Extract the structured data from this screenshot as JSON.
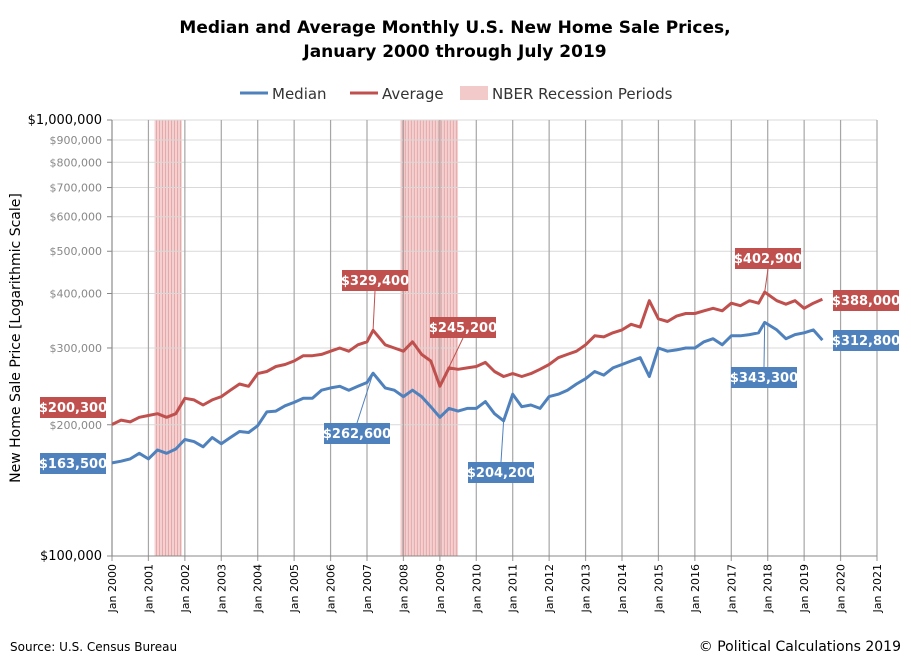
{
  "chart_data": {
    "type": "line",
    "title_line1": "Median and Average Monthly U.S. New Home Sale Prices,",
    "title_line2": "January 2000 through July 2019",
    "ylabel": "New Home Sale Price [Logarithmic Scale]",
    "xlabel": "",
    "y_scale": "log",
    "ylim": [
      100000,
      1000000
    ],
    "xlim": [
      "2000-01",
      "2021-01"
    ],
    "grid": true,
    "legend_placement": "top",
    "y_ticks": [
      {
        "value": 1000000,
        "label": "$1,000,000",
        "major": true
      },
      {
        "value": 900000,
        "label": "$900,000",
        "major": false
      },
      {
        "value": 800000,
        "label": "$800,000",
        "major": false
      },
      {
        "value": 700000,
        "label": "$700,000",
        "major": false
      },
      {
        "value": 600000,
        "label": "$600,000",
        "major": false
      },
      {
        "value": 500000,
        "label": "$500,000",
        "major": false
      },
      {
        "value": 400000,
        "label": "$400,000",
        "major": false
      },
      {
        "value": 300000,
        "label": "$300,000",
        "major": false
      },
      {
        "value": 200000,
        "label": "$200,000",
        "major": false
      },
      {
        "value": 100000,
        "label": "$100,000",
        "major": true
      }
    ],
    "x_ticks": [
      "Jan 2000",
      "Jan 2001",
      "Jan 2002",
      "Jan 2003",
      "Jan 2004",
      "Jan 2005",
      "Jan 2006",
      "Jan 2007",
      "Jan 2008",
      "Jan 2009",
      "Jan 2010",
      "Jan 2011",
      "Jan 2012",
      "Jan 2013",
      "Jan 2014",
      "Jan 2015",
      "Jan 2016",
      "Jan 2017",
      "Jan 2018",
      "Jan 2019",
      "Jan 2020",
      "Jan 2021"
    ],
    "recessions": {
      "name": "NBER Recession Periods",
      "color": "#e8a8a8",
      "periods": [
        [
          "2001-03",
          "2001-11"
        ],
        [
          "2007-12",
          "2009-06"
        ]
      ]
    },
    "series": [
      {
        "name": "Median",
        "color": "#4f81bd",
        "points": [
          [
            "2000-01",
            163500
          ],
          [
            "2000-04",
            165000
          ],
          [
            "2000-07",
            167000
          ],
          [
            "2000-10",
            172000
          ],
          [
            "2001-01",
            167000
          ],
          [
            "2001-04",
            175000
          ],
          [
            "2001-07",
            172000
          ],
          [
            "2001-10",
            176000
          ],
          [
            "2002-01",
            185000
          ],
          [
            "2002-04",
            183000
          ],
          [
            "2002-07",
            178000
          ],
          [
            "2002-10",
            187000
          ],
          [
            "2003-01",
            181000
          ],
          [
            "2003-04",
            187000
          ],
          [
            "2003-07",
            193000
          ],
          [
            "2003-10",
            192000
          ],
          [
            "2004-01",
            199000
          ],
          [
            "2004-04",
            214000
          ],
          [
            "2004-07",
            215000
          ],
          [
            "2004-10",
            221000
          ],
          [
            "2005-01",
            225000
          ],
          [
            "2005-04",
            230000
          ],
          [
            "2005-07",
            230000
          ],
          [
            "2005-10",
            240000
          ],
          [
            "2006-01",
            243000
          ],
          [
            "2006-04",
            245000
          ],
          [
            "2006-07",
            240000
          ],
          [
            "2006-10",
            245000
          ],
          [
            "2007-01",
            250000
          ],
          [
            "2007-03",
            262600
          ],
          [
            "2007-07",
            243000
          ],
          [
            "2007-10",
            240000
          ],
          [
            "2008-01",
            232000
          ],
          [
            "2008-04",
            240000
          ],
          [
            "2008-07",
            232000
          ],
          [
            "2008-10",
            220000
          ],
          [
            "2009-01",
            208000
          ],
          [
            "2009-04",
            218000
          ],
          [
            "2009-07",
            215000
          ],
          [
            "2009-10",
            218000
          ],
          [
            "2010-01",
            218000
          ],
          [
            "2010-04",
            226000
          ],
          [
            "2010-07",
            212000
          ],
          [
            "2010-10",
            204200
          ],
          [
            "2011-01",
            235000
          ],
          [
            "2011-04",
            220000
          ],
          [
            "2011-07",
            222000
          ],
          [
            "2011-10",
            218000
          ],
          [
            "2012-01",
            232000
          ],
          [
            "2012-04",
            235000
          ],
          [
            "2012-07",
            240000
          ],
          [
            "2012-10",
            248000
          ],
          [
            "2013-01",
            255000
          ],
          [
            "2013-04",
            265000
          ],
          [
            "2013-07",
            260000
          ],
          [
            "2013-10",
            270000
          ],
          [
            "2014-01",
            275000
          ],
          [
            "2014-04",
            280000
          ],
          [
            "2014-07",
            285000
          ],
          [
            "2014-10",
            258000
          ],
          [
            "2015-01",
            300000
          ],
          [
            "2015-04",
            295000
          ],
          [
            "2015-07",
            297000
          ],
          [
            "2015-10",
            300000
          ],
          [
            "2016-01",
            300000
          ],
          [
            "2016-04",
            310000
          ],
          [
            "2016-07",
            315000
          ],
          [
            "2016-10",
            305000
          ],
          [
            "2017-01",
            320000
          ],
          [
            "2017-04",
            320000
          ],
          [
            "2017-07",
            322000
          ],
          [
            "2017-10",
            325000
          ],
          [
            "2017-12",
            343300
          ],
          [
            "2018-04",
            330000
          ],
          [
            "2018-07",
            315000
          ],
          [
            "2018-10",
            322000
          ],
          [
            "2019-01",
            325000
          ],
          [
            "2019-04",
            330000
          ],
          [
            "2019-07",
            312800
          ]
        ]
      },
      {
        "name": "Average",
        "color": "#c0504d",
        "points": [
          [
            "2000-01",
            200300
          ],
          [
            "2000-04",
            205000
          ],
          [
            "2000-07",
            203000
          ],
          [
            "2000-10",
            208000
          ],
          [
            "2001-01",
            210000
          ],
          [
            "2001-04",
            212000
          ],
          [
            "2001-07",
            208000
          ],
          [
            "2001-10",
            212000
          ],
          [
            "2002-01",
            230000
          ],
          [
            "2002-04",
            228000
          ],
          [
            "2002-07",
            222000
          ],
          [
            "2002-10",
            228000
          ],
          [
            "2003-01",
            232000
          ],
          [
            "2003-04",
            240000
          ],
          [
            "2003-07",
            248000
          ],
          [
            "2003-10",
            245000
          ],
          [
            "2004-01",
            262000
          ],
          [
            "2004-04",
            265000
          ],
          [
            "2004-07",
            272000
          ],
          [
            "2004-10",
            275000
          ],
          [
            "2005-01",
            280000
          ],
          [
            "2005-04",
            288000
          ],
          [
            "2005-07",
            288000
          ],
          [
            "2005-10",
            290000
          ],
          [
            "2006-01",
            295000
          ],
          [
            "2006-04",
            300000
          ],
          [
            "2006-07",
            295000
          ],
          [
            "2006-10",
            305000
          ],
          [
            "2007-01",
            310000
          ],
          [
            "2007-03",
            329400
          ],
          [
            "2007-07",
            305000
          ],
          [
            "2007-10",
            300000
          ],
          [
            "2008-01",
            295000
          ],
          [
            "2008-04",
            310000
          ],
          [
            "2008-07",
            290000
          ],
          [
            "2008-10",
            280000
          ],
          [
            "2009-01",
            245200
          ],
          [
            "2009-04",
            270000
          ],
          [
            "2009-07",
            268000
          ],
          [
            "2009-10",
            270000
          ],
          [
            "2010-01",
            272000
          ],
          [
            "2010-04",
            278000
          ],
          [
            "2010-07",
            265000
          ],
          [
            "2010-10",
            258000
          ],
          [
            "2011-01",
            262000
          ],
          [
            "2011-04",
            258000
          ],
          [
            "2011-07",
            262000
          ],
          [
            "2011-10",
            268000
          ],
          [
            "2012-01",
            275000
          ],
          [
            "2012-04",
            285000
          ],
          [
            "2012-07",
            290000
          ],
          [
            "2012-10",
            295000
          ],
          [
            "2013-01",
            305000
          ],
          [
            "2013-04",
            320000
          ],
          [
            "2013-07",
            318000
          ],
          [
            "2013-10",
            325000
          ],
          [
            "2014-01",
            330000
          ],
          [
            "2014-04",
            340000
          ],
          [
            "2014-07",
            335000
          ],
          [
            "2014-10",
            385000
          ],
          [
            "2015-01",
            350000
          ],
          [
            "2015-04",
            345000
          ],
          [
            "2015-07",
            355000
          ],
          [
            "2015-10",
            360000
          ],
          [
            "2016-01",
            360000
          ],
          [
            "2016-04",
            365000
          ],
          [
            "2016-07",
            370000
          ],
          [
            "2016-10",
            365000
          ],
          [
            "2017-01",
            380000
          ],
          [
            "2017-04",
            375000
          ],
          [
            "2017-07",
            385000
          ],
          [
            "2017-10",
            380000
          ],
          [
            "2017-12",
            402900
          ],
          [
            "2018-04",
            385000
          ],
          [
            "2018-07",
            378000
          ],
          [
            "2018-10",
            385000
          ],
          [
            "2019-01",
            370000
          ],
          [
            "2019-04",
            380000
          ],
          [
            "2019-07",
            388000
          ]
        ]
      }
    ],
    "annotations": [
      {
        "series": "Average",
        "date": "2000-01",
        "label": "$200,300"
      },
      {
        "series": "Median",
        "date": "2000-01",
        "label": "$163,500"
      },
      {
        "series": "Average",
        "date": "2007-03",
        "label": "$329,400"
      },
      {
        "series": "Median",
        "date": "2007-03",
        "label": "$262,600"
      },
      {
        "series": "Average",
        "date": "2009-01",
        "label": "$245,200"
      },
      {
        "series": "Median",
        "date": "2010-10",
        "label": "$204,200"
      },
      {
        "series": "Average",
        "date": "2017-12",
        "label": "$402,900"
      },
      {
        "series": "Median",
        "date": "2017-12",
        "label": "$343,300"
      },
      {
        "series": "Average",
        "date": "2019-07",
        "label": "$388,000"
      },
      {
        "series": "Median",
        "date": "2019-07",
        "label": "$312,800"
      }
    ],
    "source": "Source: U.S. Census Bureau",
    "credit": "© Political Calculations 2019"
  }
}
